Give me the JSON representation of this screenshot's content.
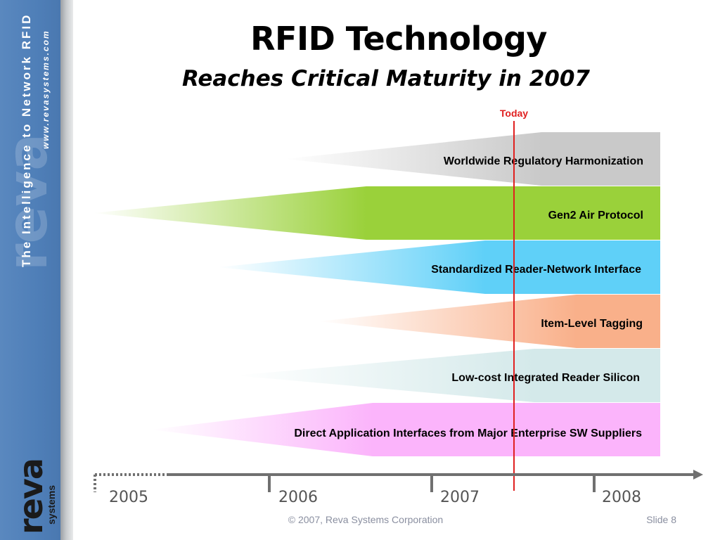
{
  "sidebar": {
    "tagline": "The Intelligence to Network RFID",
    "website": "www.revasystems.com",
    "logo": {
      "word": "reva",
      "sub": "systems"
    }
  },
  "slide": {
    "title": "RFID Technology",
    "subtitle": "Reaches Critical Maturity in 2007"
  },
  "timeline": {
    "today_label": "Today",
    "years": [
      "2005",
      "2006",
      "2007",
      "2008"
    ],
    "bars": [
      {
        "label": "Worldwide Regulatory Harmonization",
        "color": "#c9c9c9"
      },
      {
        "label": "Gen2 Air Protocol",
        "color": "#9ad13a"
      },
      {
        "label": "Standardized Reader-Network Interface",
        "color": "#5fd0f8"
      },
      {
        "label": "Item-Level Tagging",
        "color": "#f9b08a"
      },
      {
        "label": "Low-cost Integrated Reader Silicon",
        "color": "#d4e9ea"
      },
      {
        "label": "Direct Application Interfaces from Major Enterprise SW Suppliers",
        "color": "#fbb4fb"
      }
    ],
    "colors": {
      "today_line": "#e02020",
      "axis": "#707070"
    }
  },
  "footer": {
    "copyright": "© 2007, Reva Systems Corporation",
    "slide_number": "Slide 8"
  }
}
